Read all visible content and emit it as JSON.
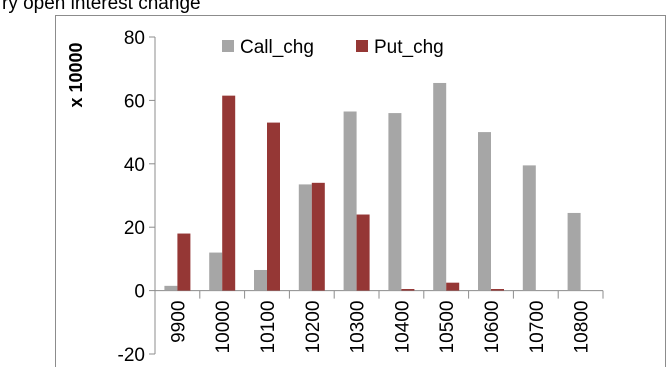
{
  "header_text": "ry open interest change",
  "chart_data": {
    "type": "bar",
    "ylabel": "x 10000",
    "xlabel": "",
    "ylim": [
      -20,
      80
    ],
    "yticks": [
      -20,
      0,
      20,
      40,
      60,
      80
    ],
    "categories": [
      "9900",
      "10000",
      "10100",
      "10200",
      "10300",
      "10400",
      "10500",
      "10600",
      "10700",
      "10800"
    ],
    "series": [
      {
        "name": "Call_chg",
        "color": "#a6a6a6",
        "values": [
          1.5,
          12,
          6.5,
          33.5,
          56.5,
          56,
          65.5,
          50,
          39.5,
          24.5
        ]
      },
      {
        "name": "Put_chg",
        "color": "#953735",
        "values": [
          18,
          61.5,
          53,
          34,
          24,
          0.5,
          2.5,
          0.5,
          0,
          0
        ]
      }
    ],
    "legend": "top",
    "grid": false
  }
}
